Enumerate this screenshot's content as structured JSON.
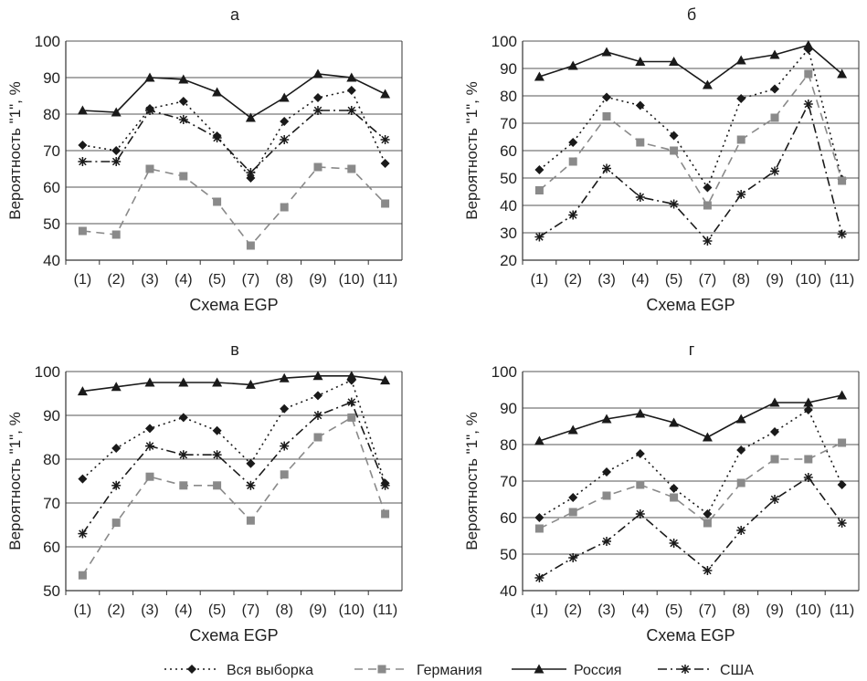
{
  "categories": [
    "(1)",
    "(2)",
    "(3)",
    "(4)",
    "(5)",
    "(7)",
    "(8)",
    "(9)",
    "(10)",
    "(11)"
  ],
  "legend": [
    {
      "name": "Вся выборка",
      "style": "dotted",
      "marker": "diamond",
      "color": "#1a1a1a"
    },
    {
      "name": "Германия",
      "style": "dashed",
      "marker": "square",
      "color": "#8a8a8a"
    },
    {
      "name": "Россия",
      "style": "solid",
      "marker": "triangle",
      "color": "#1a1a1a"
    },
    {
      "name": "США",
      "style": "dashdot",
      "marker": "star",
      "color": "#1a1a1a"
    }
  ],
  "chart_data": [
    {
      "type": "line",
      "title": "а",
      "xlabel": "Схема EGP",
      "ylabel": "Вероятность \"1\", %",
      "ylim": [
        40,
        100
      ],
      "yticks": [
        40,
        50,
        60,
        70,
        80,
        90,
        100
      ],
      "grid": true,
      "categories": [
        "(1)",
        "(2)",
        "(3)",
        "(4)",
        "(5)",
        "(7)",
        "(8)",
        "(9)",
        "(10)",
        "(11)"
      ],
      "series": [
        {
          "name": "Вся выборка",
          "values": [
            71.5,
            70,
            81.5,
            83.5,
            74,
            62.5,
            78,
            84.5,
            86.5,
            66.5
          ]
        },
        {
          "name": "Германия",
          "values": [
            48,
            47,
            65,
            63,
            56,
            44,
            54.5,
            65.5,
            65,
            55.5
          ]
        },
        {
          "name": "Россия",
          "values": [
            81,
            80.5,
            90,
            89.5,
            86,
            79,
            84.5,
            91,
            90,
            85.5
          ]
        },
        {
          "name": "США",
          "values": [
            67,
            67,
            81,
            78.5,
            73.5,
            64,
            73,
            81,
            81,
            73
          ]
        }
      ]
    },
    {
      "type": "line",
      "title": "б",
      "xlabel": "Схема EGP",
      "ylabel": "Вероятность \"1\", %",
      "ylim": [
        20,
        100
      ],
      "yticks": [
        20,
        30,
        40,
        50,
        60,
        70,
        80,
        90,
        100
      ],
      "grid": true,
      "categories": [
        "(1)",
        "(2)",
        "(3)",
        "(4)",
        "(5)",
        "(7)",
        "(8)",
        "(9)",
        "(10)",
        "(11)"
      ],
      "series": [
        {
          "name": "Вся выборка",
          "values": [
            53,
            63,
            79.5,
            76.5,
            65.5,
            46.5,
            79,
            82.5,
            97,
            49.5
          ]
        },
        {
          "name": "Германия",
          "values": [
            45.5,
            56,
            72.5,
            63,
            60,
            40,
            64,
            72,
            88,
            49
          ]
        },
        {
          "name": "Россия",
          "values": [
            87,
            91,
            96,
            92.5,
            92.5,
            84,
            93,
            95,
            98.5,
            88
          ]
        },
        {
          "name": "США",
          "values": [
            28.5,
            36.5,
            53.5,
            43,
            40.5,
            27,
            44,
            52.5,
            77,
            29.5
          ]
        }
      ]
    },
    {
      "type": "line",
      "title": "в",
      "xlabel": "Схема EGP",
      "ylabel": "Вероятность \"1\", %",
      "ylim": [
        50,
        100
      ],
      "yticks": [
        50,
        60,
        70,
        80,
        90,
        100
      ],
      "grid": true,
      "categories": [
        "(1)",
        "(2)",
        "(3)",
        "(4)",
        "(5)",
        "(7)",
        "(8)",
        "(9)",
        "(10)",
        "(11)"
      ],
      "series": [
        {
          "name": "Вся выборка",
          "values": [
            75.5,
            82.5,
            87,
            89.5,
            86.5,
            79,
            91.5,
            94.5,
            98,
            74.5
          ]
        },
        {
          "name": "Германия",
          "values": [
            53.5,
            65.5,
            76,
            74,
            74,
            66,
            76.5,
            85,
            89.5,
            67.5
          ]
        },
        {
          "name": "Россия",
          "values": [
            95.5,
            96.5,
            97.5,
            97.5,
            97.5,
            97,
            98.5,
            99,
            99,
            98
          ]
        },
        {
          "name": "США",
          "values": [
            63,
            74,
            83,
            81,
            81,
            74,
            83,
            90,
            93,
            74
          ]
        }
      ]
    },
    {
      "type": "line",
      "title": "г",
      "xlabel": "Схема EGP",
      "ylabel": "Вероятность \"1\", %",
      "ylim": [
        40,
        100
      ],
      "yticks": [
        40,
        50,
        60,
        70,
        80,
        90,
        100
      ],
      "grid": true,
      "categories": [
        "(1)",
        "(2)",
        "(3)",
        "(4)",
        "(5)",
        "(7)",
        "(8)",
        "(9)",
        "(10)",
        "(11)"
      ],
      "series": [
        {
          "name": "Вся выборка",
          "values": [
            60,
            65.5,
            72.5,
            77.5,
            68,
            61,
            78.5,
            83.5,
            89.5,
            69
          ]
        },
        {
          "name": "Германия",
          "values": [
            57,
            61.5,
            66,
            69,
            65.5,
            58.5,
            69.5,
            76,
            76,
            80.5
          ]
        },
        {
          "name": "Россия",
          "values": [
            81,
            84,
            87,
            88.5,
            86,
            82,
            87,
            91.5,
            91.5,
            93.5
          ]
        },
        {
          "name": "США",
          "values": [
            43.5,
            49,
            53.5,
            61,
            53,
            45.5,
            56.5,
            65,
            71,
            58.5
          ]
        }
      ]
    }
  ]
}
